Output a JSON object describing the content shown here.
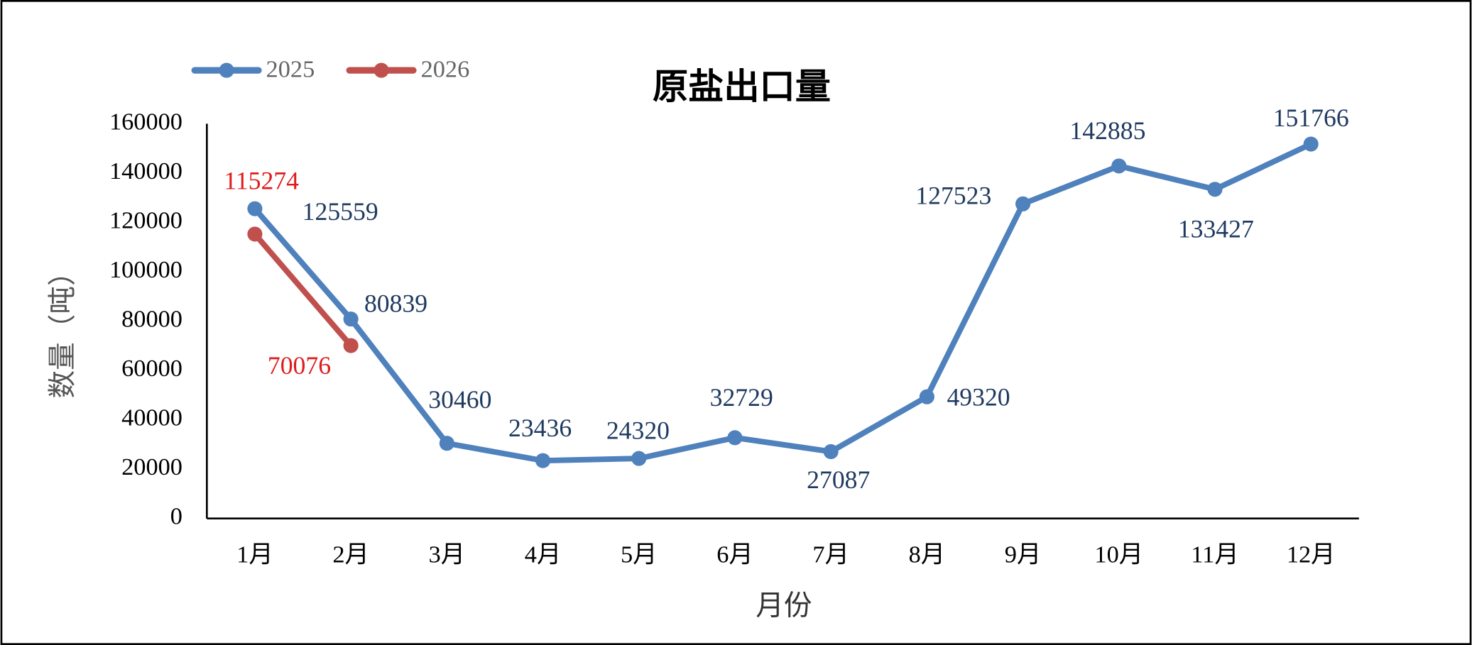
{
  "chart_data": {
    "type": "line",
    "title": "原盐出口量",
    "x_label": "月份",
    "y_label": "数量（吨）",
    "categories": [
      "1月",
      "2月",
      "3月",
      "4月",
      "5月",
      "6月",
      "7月",
      "8月",
      "9月",
      "10月",
      "11月",
      "12月"
    ],
    "series": [
      {
        "name": "2025",
        "color": "#4f81bd",
        "label_color": "#1f3a60",
        "values": [
          125559,
          80839,
          30460,
          23436,
          24320,
          32729,
          27087,
          49320,
          127523,
          142885,
          133427,
          151766
        ]
      },
      {
        "name": "2026",
        "color": "#c0504d",
        "label_color": "#e01b1b",
        "values": [
          115274,
          70076,
          null,
          null,
          null,
          null,
          null,
          null,
          null,
          null,
          null,
          null
        ]
      }
    ],
    "ylim": [
      0,
      160000
    ],
    "yticks": [
      0,
      20000,
      40000,
      60000,
      80000,
      100000,
      120000,
      140000,
      160000
    ],
    "grid": false,
    "legend": "top-left"
  }
}
